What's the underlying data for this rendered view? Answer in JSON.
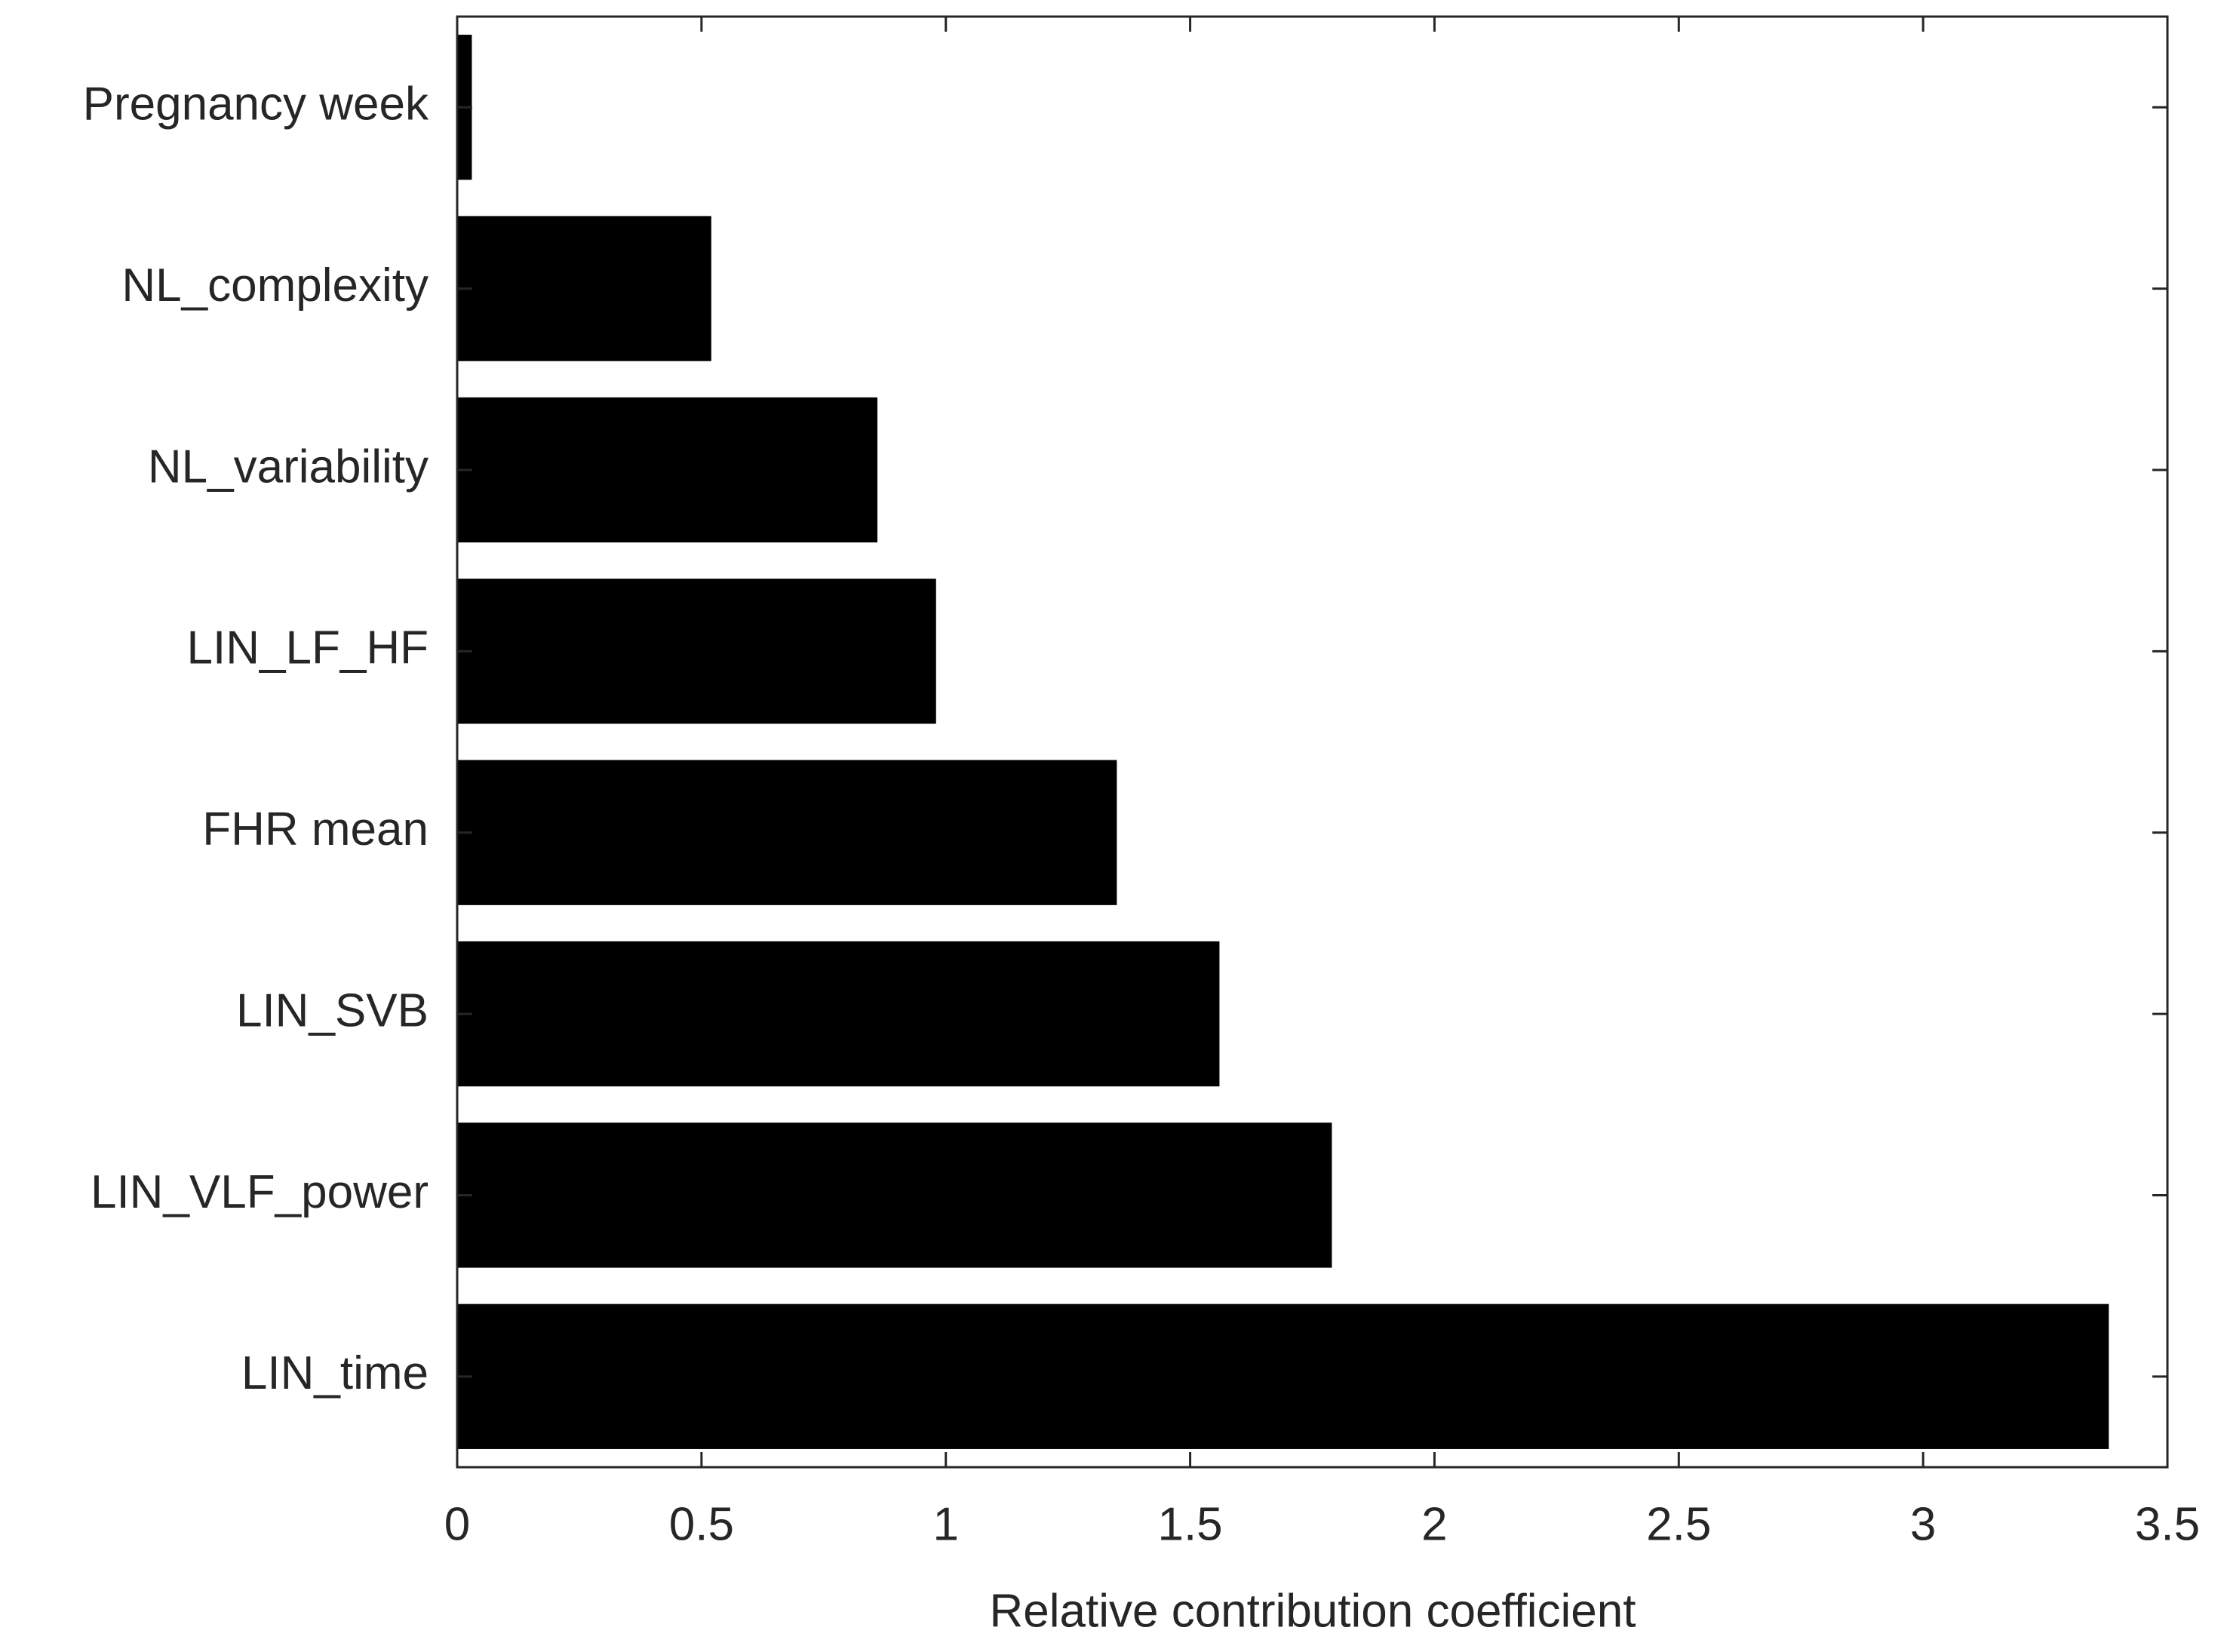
{
  "chart_data": {
    "type": "barh",
    "xlabel": "Relative contribution coefficient",
    "categories": [
      "Pregnancy week",
      "NL_complexity",
      "NL_variability",
      "LIN_LF_HF",
      "FHR mean",
      "LIN_SVB",
      "LIN_VLF_power",
      "LIN_time"
    ],
    "values": [
      0.03,
      0.52,
      0.86,
      0.98,
      1.35,
      1.56,
      1.79,
      3.38
    ],
    "color": "#000000",
    "xlim": [
      0,
      3.5
    ],
    "xticks": [
      0,
      0.5,
      1,
      1.5,
      2,
      2.5,
      3,
      3.5
    ]
  }
}
